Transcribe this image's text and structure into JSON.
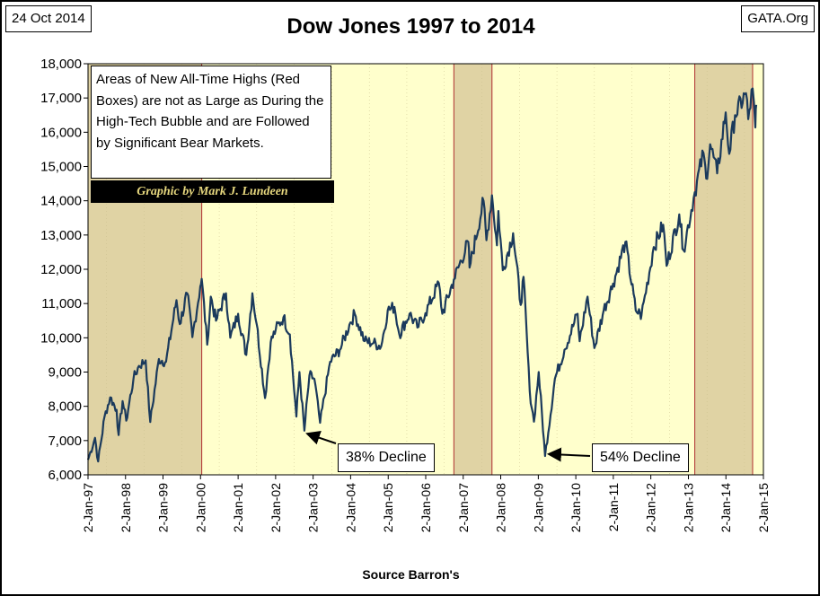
{
  "header": {
    "date": "24 Oct 2014",
    "source_site": "GATA.Org"
  },
  "note": {
    "text": "Areas of New All-Time Highs (Red Boxes) are not as Large as During the High-Tech Bubble and are Followed by Significant Bear Markets.",
    "credit": "Graphic by Mark J. Lundeen"
  },
  "chart_data": {
    "type": "line",
    "title": "Dow Jones 1997 to 2014",
    "xlabel": "Source Barron's",
    "ylabel": "",
    "ylim": [
      6000,
      18000
    ],
    "xlim": [
      "1997-01-02",
      "2015-01-02"
    ],
    "grid": false,
    "plot_background": "#ffffcc",
    "line_color": "#1b3a5c",
    "y_ticks": [
      "6,000",
      "7,000",
      "8,000",
      "9,000",
      "10,000",
      "11,000",
      "12,000",
      "13,000",
      "14,000",
      "15,000",
      "16,000",
      "17,000",
      "18,000"
    ],
    "x_ticks": [
      "2-Jan-97",
      "2-Jan-98",
      "2-Jan-99",
      "2-Jan-00",
      "2-Jan-01",
      "2-Jan-02",
      "2-Jan-03",
      "2-Jan-04",
      "2-Jan-05",
      "2-Jan-06",
      "2-Jan-07",
      "2-Jan-08",
      "2-Jan-09",
      "2-Jan-10",
      "2-Jan-11",
      "2-Jan-12",
      "2-Jan-13",
      "2-Jan-14",
      "2-Jan-15"
    ],
    "highlight_periods": [
      {
        "start": "1997-01-02",
        "end": "2000-01-14",
        "color": "#e0d3a4",
        "border": "#b03030"
      },
      {
        "start": "2006-10-03",
        "end": "2007-10-09",
        "color": "#e0d3a4",
        "border": "#b03030"
      },
      {
        "start": "2013-03-05",
        "end": "2014-09-19",
        "color": "#e0d3a4",
        "border": "#b03030"
      }
    ],
    "series": [
      {
        "x": [
          "1997-01-02",
          "1997-03-11",
          "1997-04-11",
          "1997-06-12",
          "1997-08-06",
          "1997-10-07",
          "1997-10-27",
          "1997-12-05",
          "1998-01-09",
          "1998-03-20",
          "1998-05-13",
          "1998-07-17",
          "1998-08-31",
          "1998-11-23",
          "1999-02-01",
          "1999-05-13",
          "1999-06-14",
          "1999-08-25",
          "1999-10-15",
          "1999-12-31",
          "2000-01-14",
          "2000-03-07",
          "2000-04-11",
          "2000-06-01",
          "2000-09-06",
          "2000-10-18",
          "2001-01-02",
          "2001-03-22",
          "2001-05-21",
          "2001-07-02",
          "2001-09-21",
          "2001-11-15",
          "2002-01-04",
          "2002-03-19",
          "2002-05-20",
          "2002-07-23",
          "2002-08-22",
          "2002-10-09",
          "2002-11-27",
          "2003-01-14",
          "2003-03-11",
          "2003-06-17",
          "2003-09-19",
          "2003-12-31",
          "2004-02-11",
          "2004-05-17",
          "2004-08-12",
          "2004-10-25",
          "2004-12-28",
          "2005-03-04",
          "2005-04-20",
          "2005-07-29",
          "2005-10-13",
          "2005-12-30",
          "2006-05-10",
          "2006-06-13",
          "2006-10-03",
          "2007-02-20",
          "2007-03-05",
          "2007-07-19",
          "2007-08-16",
          "2007-10-09",
          "2007-11-26",
          "2007-12-10",
          "2008-01-22",
          "2008-05-02",
          "2008-07-15",
          "2008-08-11",
          "2008-10-10",
          "2008-11-20",
          "2009-01-06",
          "2009-03-09",
          "2009-06-12",
          "2009-09-14",
          "2010-01-19",
          "2010-02-08",
          "2010-04-26",
          "2010-07-02",
          "2010-09-30",
          "2010-12-31",
          "2011-04-29",
          "2011-08-08",
          "2011-09-20",
          "2011-10-03",
          "2012-01-31",
          "2012-05-01",
          "2012-06-04",
          "2012-10-05",
          "2012-11-15",
          "2013-03-05",
          "2013-05-28",
          "2013-06-24",
          "2013-08-02",
          "2013-10-09",
          "2013-12-31",
          "2014-02-03",
          "2014-04-01",
          "2014-07-16",
          "2014-08-07",
          "2014-09-19",
          "2014-10-15",
          "2014-10-24"
        ],
        "y": [
          6440,
          7080,
          6390,
          7700,
          8260,
          7900,
          7160,
          8150,
          7580,
          8800,
          9180,
          9340,
          7540,
          9380,
          9300,
          11100,
          10400,
          11300,
          10020,
          11500,
          11720,
          9800,
          11200,
          10500,
          11300,
          10000,
          10700,
          9500,
          11300,
          10400,
          8240,
          9870,
          10250,
          10600,
          10100,
          7700,
          9000,
          7290,
          8900,
          8800,
          7520,
          9300,
          9650,
          10450,
          10700,
          9900,
          9850,
          9750,
          10800,
          10900,
          10100,
          10700,
          10300,
          10720,
          11600,
          10700,
          11700,
          12800,
          12050,
          14000,
          12850,
          14160,
          12700,
          13700,
          11970,
          13050,
          10960,
          11780,
          8450,
          7550,
          9000,
          6550,
          8800,
          9650,
          10700,
          9900,
          11200,
          9700,
          10800,
          11580,
          12800,
          10800,
          10700,
          10650,
          12650,
          13300,
          12100,
          13600,
          12560,
          14250,
          15400,
          14650,
          15650,
          14800,
          16580,
          15370,
          16500,
          17140,
          16380,
          17280,
          16140,
          16800
        ]
      }
    ],
    "annotations": [
      {
        "text": "38% Decline",
        "x": "2002-10-09",
        "y": 7290
      },
      {
        "text": "54% Decline",
        "x": "2009-03-09",
        "y": 6550
      }
    ]
  }
}
